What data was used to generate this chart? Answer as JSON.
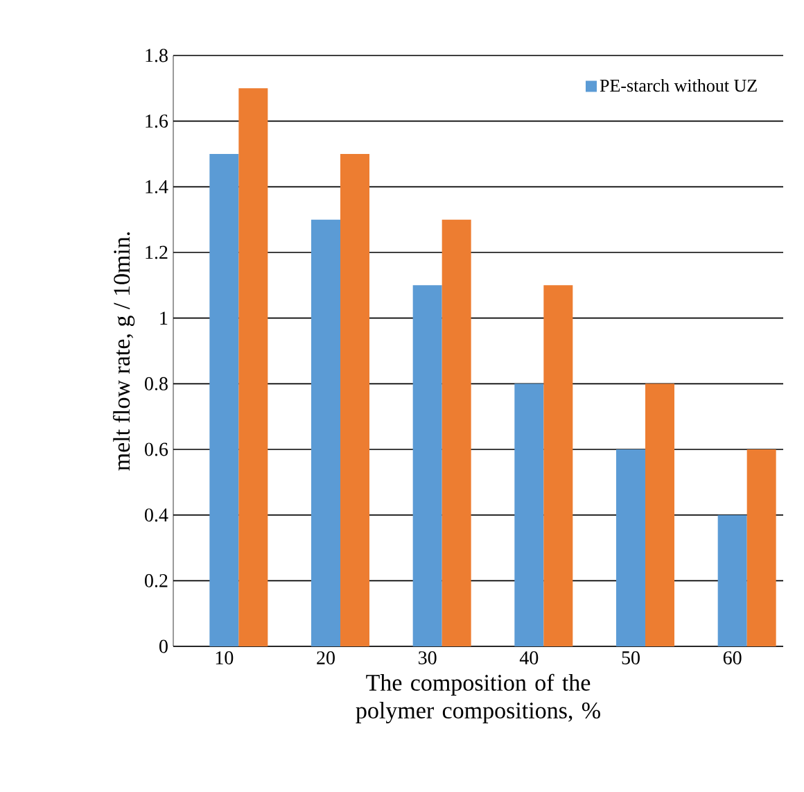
{
  "chart_data": {
    "type": "bar",
    "xlabel": "The composition of the polymer compositions, %",
    "ylabel": "melt flow rate, g / 10min.",
    "categories": [
      "10",
      "20",
      "30",
      "40",
      "50",
      "60"
    ],
    "series": [
      {
        "name": "PE-starch without UZ",
        "color": "#5b9bd5",
        "values": [
          1.5,
          1.3,
          1.1,
          0.8,
          0.6,
          0.4
        ]
      },
      {
        "color": "#ed7d31",
        "values": [
          1.7,
          1.5,
          1.3,
          1.1,
          0.8,
          0.6
        ]
      }
    ],
    "ylim": [
      0,
      1.8
    ],
    "yticks": [
      0,
      0.2,
      0.4,
      0.6,
      0.8,
      1,
      1.2,
      1.4,
      1.6,
      1.8
    ],
    "grid": "y",
    "legend": "top right"
  }
}
